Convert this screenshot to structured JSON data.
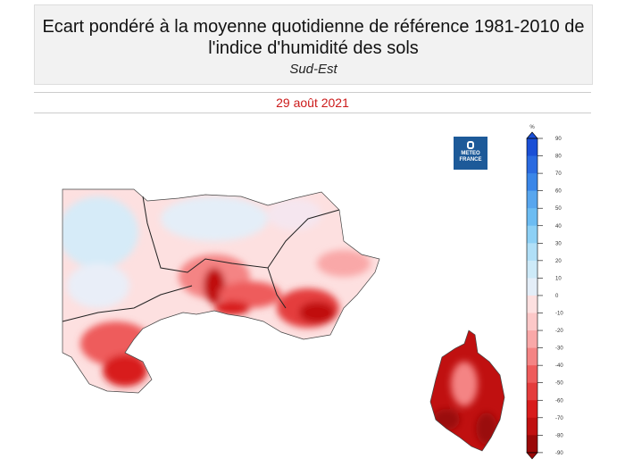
{
  "header": {
    "title": "Ecart pondéré à la moyenne quotidienne de référence 1981-2010 de l'indice d'humidité des sols",
    "region": "Sud-Est"
  },
  "date": "29 août 2021",
  "logo": {
    "line1": "METEO",
    "line2": "FRANCE"
  },
  "legend": {
    "unit": "%",
    "ticks": [
      90,
      80,
      70,
      60,
      50,
      40,
      30,
      20,
      10,
      0,
      -10,
      -20,
      -30,
      -40,
      -50,
      -60,
      -70,
      -80,
      -90
    ],
    "colors": [
      "#1a4fd6",
      "#2a6ae0",
      "#3a86e8",
      "#58a6ee",
      "#6cbcf2",
      "#8dd0f5",
      "#b0dff7",
      "#cdeaf8",
      "#e4eef8",
      "#fde0e0",
      "#fcc8c8",
      "#f9a8a8",
      "#f48484",
      "#ee5c5c",
      "#e43c3c",
      "#d81c1c",
      "#c01010",
      "#9a0808"
    ]
  },
  "date_color": "#cc1a1a"
}
